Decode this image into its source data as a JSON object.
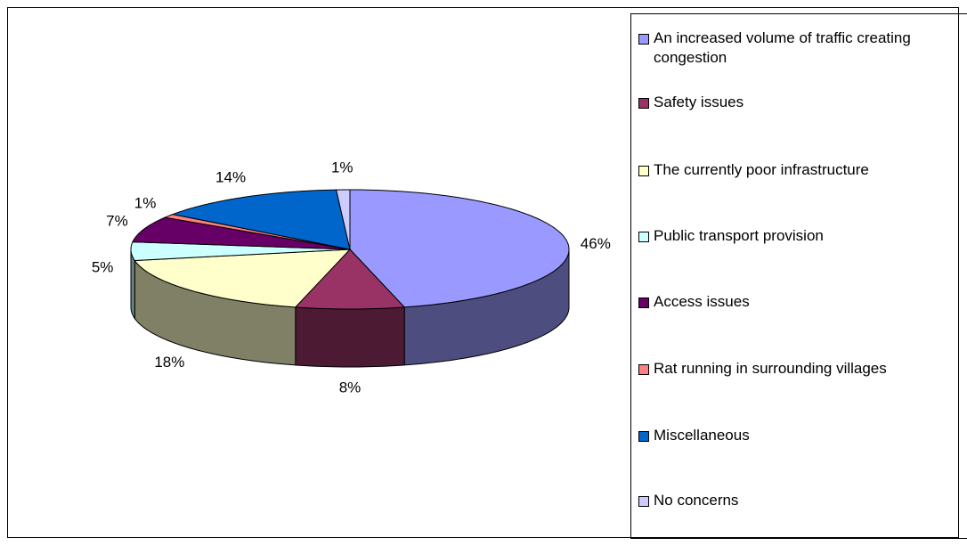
{
  "chart_data": {
    "type": "pie3d",
    "categories": [
      "An increased volume of traffic creating congestion",
      "Safety issues",
      "The currently poor infrastructure",
      "Public transport provision",
      "Access issues",
      "Rat running in surrounding villages",
      "Miscellaneous",
      "No concerns"
    ],
    "values": [
      46,
      8,
      18,
      5,
      7,
      1,
      14,
      1
    ],
    "value_labels": [
      "46%",
      "8%",
      "18%",
      "5%",
      "7%",
      "1%",
      "14%",
      "1%"
    ],
    "colors": [
      "#9999ff",
      "#993366",
      "#ffffcc",
      "#ccffff",
      "#660066",
      "#ff8080",
      "#0066cc",
      "#ccccff"
    ],
    "legend": "right"
  }
}
